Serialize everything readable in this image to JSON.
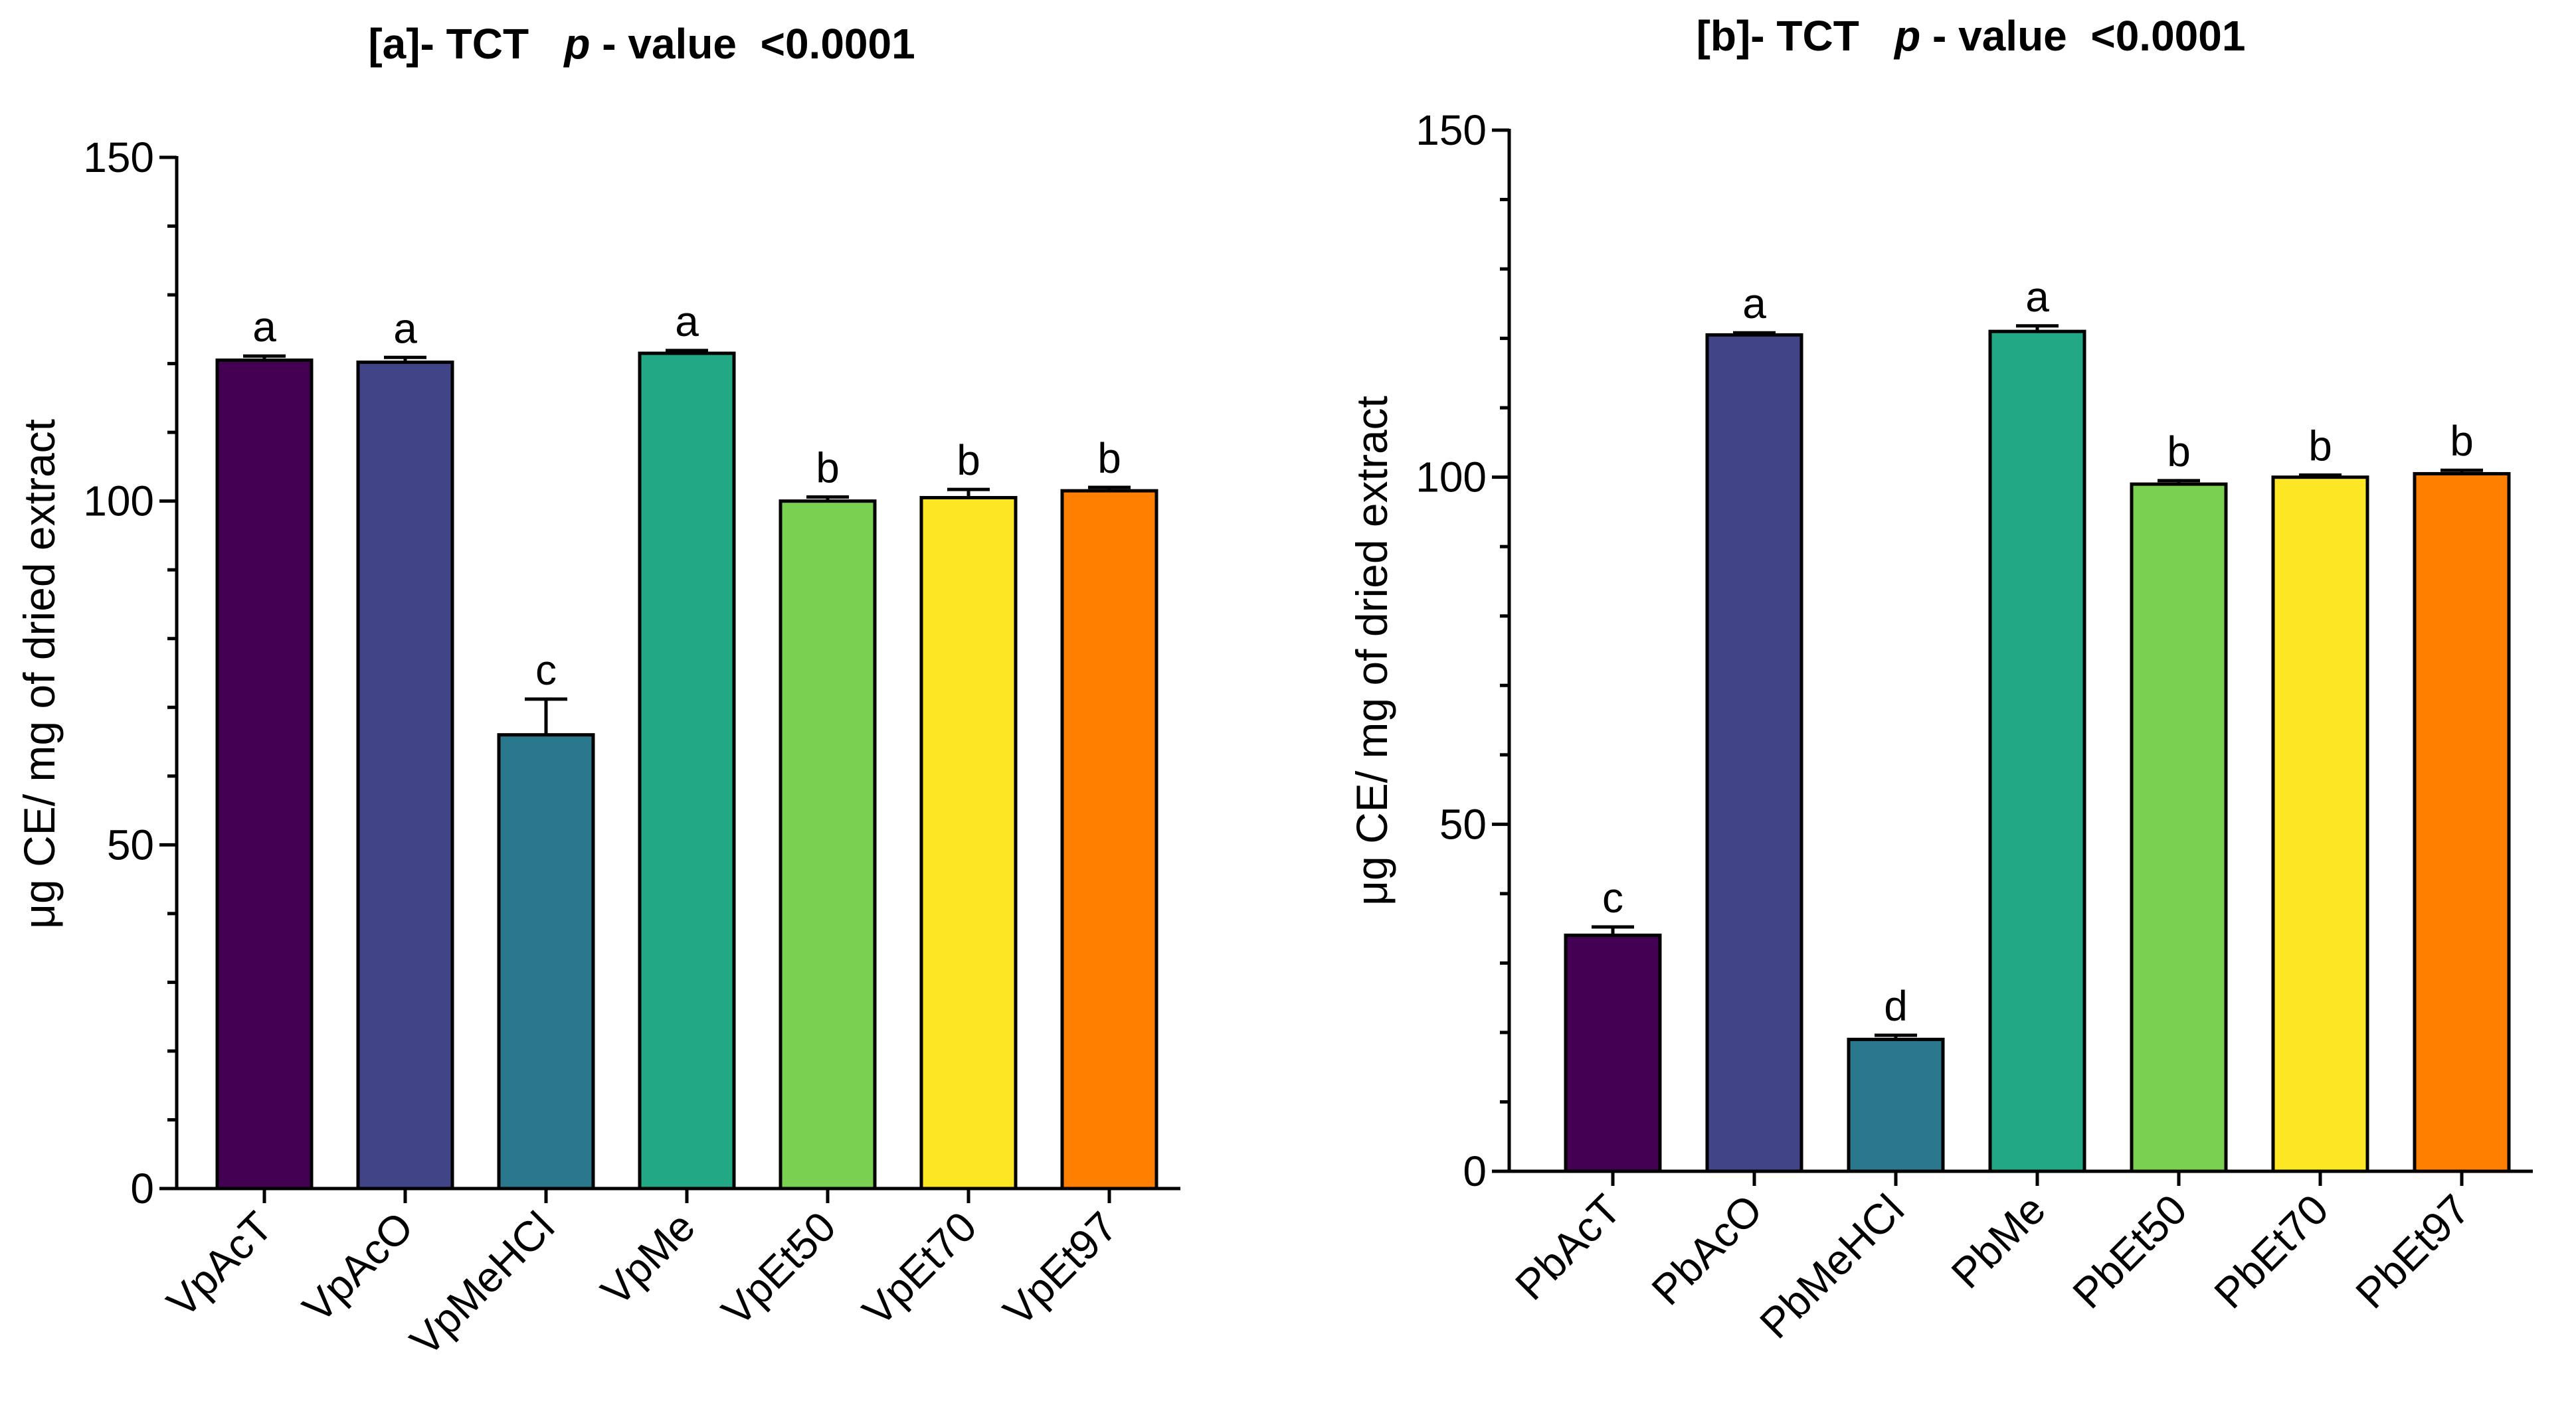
{
  "chart_data": [
    {
      "type": "bar",
      "title_prefix": "[a]- TCT",
      "title_p": "p",
      "title_suffix": "- value <0.0001",
      "ylabel": "μg CE/ mg of dried extract",
      "xlabel": "",
      "ylim": [
        0,
        150
      ],
      "yticks": [
        0,
        50,
        100,
        150
      ],
      "categories": [
        "VpAcT",
        "VpAcO",
        "VpMeHCl",
        "VpMe",
        "VpEt50",
        "VpEt70",
        "VpEt97"
      ],
      "values": [
        120.5,
        120.2,
        66,
        121.5,
        100,
        100.5,
        101.5
      ],
      "errors": [
        0.6,
        0.7,
        5.2,
        0.4,
        0.6,
        1.2,
        0.5
      ],
      "letters": [
        "a",
        "a",
        "c",
        "a",
        "b",
        "b",
        "b"
      ],
      "colors": [
        "#440154",
        "#414487",
        "#2a788e",
        "#22a884",
        "#7ad151",
        "#fde725",
        "#ff7f00"
      ]
    },
    {
      "type": "bar",
      "title_prefix": "[b]- TCT",
      "title_p": "p",
      "title_suffix": "- value <0.0001",
      "ylabel": "μg CE/ mg of dried extract",
      "xlabel": "",
      "ylim": [
        0,
        150
      ],
      "yticks": [
        0,
        50,
        100,
        150
      ],
      "categories": [
        "PbAcT",
        "PbAcO",
        "PbMeHCl",
        "PbMe",
        "PbEt50",
        "PbEt70",
        "PbEt97"
      ],
      "values": [
        34,
        120.5,
        19,
        121,
        99,
        100,
        100.5
      ],
      "errors": [
        1.2,
        0.3,
        0.6,
        0.8,
        0.5,
        0.3,
        0.5
      ],
      "letters": [
        "c",
        "a",
        "d",
        "a",
        "b",
        "b",
        "b"
      ],
      "colors": [
        "#440154",
        "#414487",
        "#2a788e",
        "#22a884",
        "#7ad151",
        "#fde725",
        "#ff7f00"
      ]
    }
  ]
}
